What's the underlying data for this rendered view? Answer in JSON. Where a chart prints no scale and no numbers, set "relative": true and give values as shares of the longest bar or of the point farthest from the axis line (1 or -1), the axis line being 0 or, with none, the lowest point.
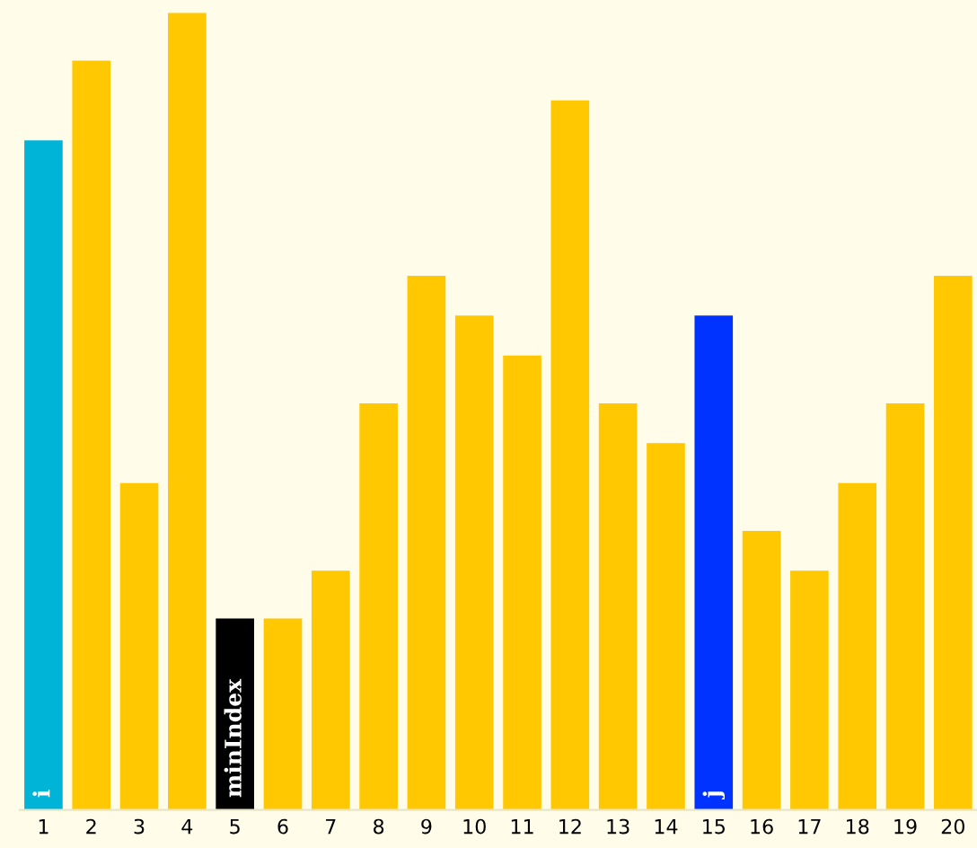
{
  "chart_data": {
    "type": "bar",
    "relative": true,
    "categories": [
      "1",
      "2",
      "3",
      "4",
      "5",
      "6",
      "7",
      "8",
      "9",
      "10",
      "11",
      "12",
      "13",
      "14",
      "15",
      "16",
      "17",
      "18",
      "19",
      "20"
    ],
    "values": [
      0.84,
      0.94,
      0.41,
      1,
      0.24,
      0.24,
      0.3,
      0.51,
      0.67,
      0.62,
      0.57,
      0.89,
      0.51,
      0.46,
      0.62,
      0.35,
      0.3,
      0.41,
      0.51,
      0.67
    ],
    "colors": [
      "#00b4d8",
      "#ffc800",
      "#ffc800",
      "#ffc800",
      "#000000",
      "#ffc800",
      "#ffc800",
      "#ffc800",
      "#ffc800",
      "#ffc800",
      "#ffc800",
      "#ffc800",
      "#ffc800",
      "#ffc800",
      "#0033ff",
      "#ffc800",
      "#ffc800",
      "#ffc800",
      "#ffc800",
      "#ffc800"
    ],
    "annotations": [
      {
        "text": "i",
        "x": "1",
        "y": 0
      },
      {
        "text": "minIndex",
        "x": "5",
        "y": 0
      },
      {
        "text": "j",
        "x": "15",
        "y": 0
      }
    ],
    "grid": false,
    "legend": false
  }
}
